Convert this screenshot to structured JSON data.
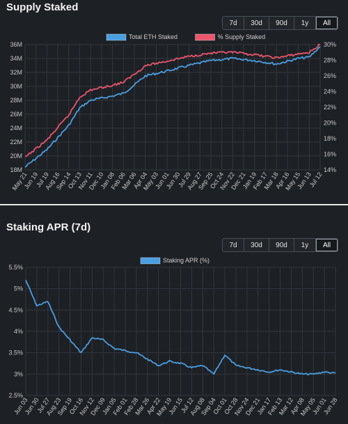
{
  "panels": [
    {
      "title": "Supply Staked",
      "ranges": [
        "7d",
        "30d",
        "90d",
        "1y",
        "All"
      ],
      "active_range": "All"
    },
    {
      "title": "Staking APR (7d)",
      "ranges": [
        "7d",
        "30d",
        "90d",
        "1y",
        "All"
      ],
      "active_range": "All"
    }
  ],
  "chart_data": [
    {
      "type": "line",
      "title": "",
      "series": [
        {
          "name": "Total ETH Staked",
          "color": "#4a9ee0",
          "axis": "left",
          "values_start_end": [
            18.4,
            35.7
          ],
          "anchors": [
            {
              "x": "May 21",
              "y": 18.4
            },
            {
              "x": "Jul 19",
              "y": 20.9
            },
            {
              "x": "Sep 14",
              "y": 24.4
            },
            {
              "x": "Oct 13",
              "y": 26.9
            },
            {
              "x": "Nov 11",
              "y": 28.0
            },
            {
              "x": "Jan 08",
              "y": 28.6
            },
            {
              "x": "Feb 06",
              "y": 29.0
            },
            {
              "x": "Mar 06",
              "y": 30.2
            },
            {
              "x": "Apr 04",
              "y": 31.5
            },
            {
              "x": "Jun 01",
              "y": 32.2
            },
            {
              "x": "Jul 29",
              "y": 33.0
            },
            {
              "x": "Sep 25",
              "y": 33.7
            },
            {
              "x": "Nov 22",
              "y": 34.0
            },
            {
              "x": "Jan 19",
              "y": 33.7
            },
            {
              "x": "Mar 18",
              "y": 33.2
            },
            {
              "x": "May 15",
              "y": 34.0
            },
            {
              "x": "Jun 13",
              "y": 34.2
            },
            {
              "x": "Jul 12",
              "y": 35.7
            }
          ]
        },
        {
          "name": "% Supply Staked",
          "color": "#e8566d",
          "axis": "right",
          "anchors": [
            {
              "x": "May 21",
              "y": 15.6
            },
            {
              "x": "Jul 19",
              "y": 17.8
            },
            {
              "x": "Sep 14",
              "y": 21.0
            },
            {
              "x": "Oct 13",
              "y": 23.3
            },
            {
              "x": "Nov 11",
              "y": 24.2
            },
            {
              "x": "Jan 08",
              "y": 24.8
            },
            {
              "x": "Feb 06",
              "y": 25.2
            },
            {
              "x": "Mar 06",
              "y": 26.2
            },
            {
              "x": "Apr 04",
              "y": 27.3
            },
            {
              "x": "Jun 01",
              "y": 27.9
            },
            {
              "x": "Jul 29",
              "y": 28.5
            },
            {
              "x": "Sep 25",
              "y": 28.9
            },
            {
              "x": "Nov 22",
              "y": 29.0
            },
            {
              "x": "Jan 19",
              "y": 28.7
            },
            {
              "x": "Mar 18",
              "y": 28.3
            },
            {
              "x": "May 15",
              "y": 28.8
            },
            {
              "x": "Jun 13",
              "y": 29.0
            },
            {
              "x": "Jul 12",
              "y": 30.0
            }
          ]
        }
      ],
      "x_ticks": [
        "May 21",
        "Jun 19",
        "Jul 19",
        "Aug 16",
        "Sep 14",
        "Oct 13",
        "Nov 11",
        "Dec 10",
        "Jan 08",
        "Feb 06",
        "Mar 06",
        "Apr 04",
        "May 03",
        "Jun 01",
        "Jun 30",
        "Jul 29",
        "Aug 27",
        "Sep 25",
        "Oct 24",
        "Nov 22",
        "Dec 21",
        "Jan 19",
        "Feb 17",
        "Mar 18",
        "Apr 16",
        "May 15",
        "Jun 13",
        "Jul 12"
      ],
      "y_ticks_left": [
        "18M",
        "20M",
        "22M",
        "24M",
        "26M",
        "28M",
        "30M",
        "32M",
        "34M",
        "36M"
      ],
      "y_ticks_right": [
        "14%",
        "16%",
        "18%",
        "20%",
        "22%",
        "24%",
        "26%",
        "28%",
        "30%"
      ],
      "ylim_left": [
        18,
        36
      ],
      "ylim_right": [
        14,
        30
      ],
      "grid": true,
      "legend": "top-center"
    },
    {
      "type": "line",
      "title": "",
      "series": [
        {
          "name": "Staking APR (%)",
          "color": "#4a9ee0",
          "anchors": [
            {
              "x": "Jun 03",
              "y": 5.2
            },
            {
              "x": "Jun 30",
              "y": 4.6
            },
            {
              "x": "Jul 27",
              "y": 4.7
            },
            {
              "x": "Aug 23",
              "y": 4.1
            },
            {
              "x": "Sep 19",
              "y": 3.8
            },
            {
              "x": "Oct 16",
              "y": 3.5
            },
            {
              "x": "Nov 12",
              "y": 3.85
            },
            {
              "x": "Dec 09",
              "y": 3.8
            },
            {
              "x": "Jan 05",
              "y": 3.6
            },
            {
              "x": "Feb 01",
              "y": 3.55
            },
            {
              "x": "Feb 28",
              "y": 3.5
            },
            {
              "x": "Mar 26",
              "y": 3.35
            },
            {
              "x": "Apr 22",
              "y": 3.2
            },
            {
              "x": "May 19",
              "y": 3.3
            },
            {
              "x": "Jun 15",
              "y": 3.25
            },
            {
              "x": "Jul 12",
              "y": 3.15
            },
            {
              "x": "Aug 08",
              "y": 3.2
            },
            {
              "x": "Sep 04",
              "y": 3.0
            },
            {
              "x": "Oct 01",
              "y": 3.45
            },
            {
              "x": "Oct 28",
              "y": 3.2
            },
            {
              "x": "Nov 24",
              "y": 3.15
            },
            {
              "x": "Dec 21",
              "y": 3.1
            },
            {
              "x": "Jan 17",
              "y": 3.05
            },
            {
              "x": "Feb 13",
              "y": 3.1
            },
            {
              "x": "Mar 12",
              "y": 3.05
            },
            {
              "x": "Apr 08",
              "y": 3.0
            },
            {
              "x": "May 05",
              "y": 3.0
            },
            {
              "x": "Jun 01",
              "y": 3.05
            },
            {
              "x": "Jun 28",
              "y": 3.02
            }
          ]
        }
      ],
      "x_ticks": [
        "Jun 03",
        "Jun 30",
        "Jul 27",
        "Aug 23",
        "Sep 19",
        "Oct 16",
        "Nov 12",
        "Dec 09",
        "Jan 05",
        "Feb 01",
        "Feb 28",
        "Mar 26",
        "Apr 22",
        "May 19",
        "Jun 15",
        "Jul 12",
        "Aug 08",
        "Sep 04",
        "Oct 01",
        "Oct 28",
        "Nov 24",
        "Dec 21",
        "Jan 17",
        "Feb 13",
        "Mar 12",
        "Apr 08",
        "May 05",
        "Jun 01",
        "Jun 28"
      ],
      "y_ticks_left": [
        "2.5%",
        "3%",
        "3.5%",
        "4%",
        "4.5%",
        "5%",
        "5.5%"
      ],
      "ylim_left": [
        2.5,
        5.5
      ],
      "grid": true,
      "legend": "top-center"
    }
  ]
}
